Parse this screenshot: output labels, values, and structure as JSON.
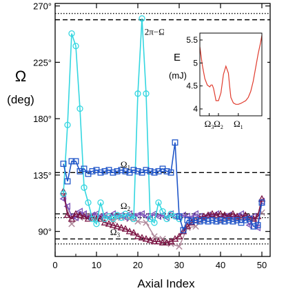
{
  "chart_data": [
    {
      "type": "line",
      "xlabel": "Axial Index",
      "ylabel": "Ω",
      "ylabel_unit": "(deg)",
      "xlim": [
        0,
        52
      ],
      "ylim": [
        70,
        272
      ],
      "x_ticks": [
        0,
        10,
        20,
        30,
        40,
        50
      ],
      "y_ticks": [
        90,
        135,
        180,
        225,
        270
      ],
      "y_tick_labels": [
        "90°",
        "135°",
        "180°",
        "225°",
        "270°"
      ],
      "grid": false,
      "colors": {
        "cyan": "#33d6e0",
        "blue": "#1f55c8",
        "violet": "#7a50b8",
        "maroon": "#7a1242",
        "mauve": "#b08a9c"
      },
      "reference_lines": [
        {
          "label": "2π−Ω₂",
          "y": 259,
          "style": "dashed"
        },
        {
          "y": 264,
          "style": "dotted"
        },
        {
          "label": "Ω₁",
          "y": 137,
          "style": "dashed"
        },
        {
          "label": "Ω₂",
          "y": 104,
          "style": "dashed"
        },
        {
          "y": 101,
          "style": "dotted"
        },
        {
          "label": "Ω₃",
          "y": 84,
          "style": "dashed"
        },
        {
          "y": 80,
          "style": "dotted"
        }
      ],
      "annotations": [
        {
          "text": "2π−Ω",
          "sub": "2",
          "x": 24.5,
          "y": 247
        },
        {
          "text": "Ω",
          "sub": "1",
          "x": 17,
          "y": 141
        },
        {
          "text": "Ω",
          "sub": "2",
          "x": 17,
          "y": 108
        },
        {
          "text": "Ω",
          "sub": "3",
          "x": 14.5,
          "y": 87
        }
      ],
      "series": [
        {
          "marker": "circle",
          "color": "cyan",
          "x": [
            2,
            3,
            4,
            5,
            6,
            7,
            8,
            9,
            10,
            11,
            12,
            13,
            14,
            15,
            16,
            17,
            18,
            19,
            20,
            21,
            22,
            23,
            24,
            25,
            26,
            27,
            28,
            29,
            30
          ],
          "y": [
            120,
            175,
            248,
            238,
            188,
            125,
            113,
            100,
            96,
            113,
            100,
            102,
            100,
            103,
            101,
            104,
            102,
            100,
            200,
            260,
            200,
            100,
            97,
            113,
            106,
            100,
            104,
            102,
            100
          ]
        },
        {
          "marker": "square",
          "color": "blue",
          "x": [
            2,
            3,
            4,
            5,
            6,
            7,
            8,
            9,
            10,
            11,
            12,
            13,
            14,
            15,
            16,
            17,
            18,
            19,
            20,
            21,
            22,
            23,
            24,
            25,
            26,
            27,
            28,
            29,
            30,
            31,
            32,
            33,
            34,
            35,
            36,
            37,
            38,
            39,
            40,
            41,
            42,
            43,
            44,
            45,
            46,
            47,
            48,
            49,
            50
          ],
          "y": [
            144,
            130,
            146,
            146,
            138,
            140,
            136,
            138,
            139,
            137,
            138,
            139,
            137,
            138,
            139,
            138,
            137,
            139,
            138,
            137,
            139,
            138,
            137,
            138,
            140,
            138,
            137,
            161,
            102,
            91,
            99,
            98,
            99,
            98,
            99,
            98,
            99,
            98,
            99,
            98,
            99,
            98,
            99,
            97,
            99,
            100,
            94,
            95,
            113
          ]
        },
        {
          "marker": "triangle-left",
          "color": "violet",
          "x": [
            2,
            3,
            4,
            5,
            6,
            7,
            8,
            9,
            10,
            11,
            12,
            13,
            14,
            15,
            16,
            17,
            18,
            19,
            20,
            21,
            22,
            23,
            24,
            25,
            26,
            27,
            28,
            29,
            30,
            31,
            32,
            33,
            34,
            35,
            36,
            37,
            38,
            39,
            40,
            41,
            42,
            43,
            44,
            45,
            46,
            47,
            48,
            49,
            50
          ],
          "y": [
            116,
            110,
            102,
            101,
            106,
            104,
            101,
            103,
            104,
            102,
            103,
            101,
            104,
            102,
            103,
            101,
            104,
            102,
            103,
            104,
            102,
            101,
            104,
            102,
            103,
            101,
            104,
            102,
            101,
            103,
            102,
            101,
            104,
            102,
            101,
            103,
            102,
            104,
            101,
            102,
            103,
            101,
            102,
            104,
            101,
            95,
            102,
            93,
            114
          ]
        },
        {
          "marker": "triangle-up",
          "color": "maroon",
          "x": [
            2,
            3,
            4,
            5,
            6,
            7,
            8,
            9,
            10,
            11,
            12,
            13,
            14,
            15,
            16,
            17,
            18,
            19,
            20,
            21,
            22,
            23,
            24,
            25,
            26,
            27,
            28,
            29,
            30,
            31,
            32,
            33,
            34,
            35,
            36,
            37,
            38,
            39,
            40,
            41,
            42,
            43,
            44,
            45,
            46,
            47,
            48,
            49,
            50
          ],
          "y": [
            122,
            103,
            100,
            104,
            103,
            102,
            100,
            101,
            100,
            100,
            97,
            96,
            95,
            94,
            93,
            92,
            90,
            89,
            86,
            85,
            84,
            83,
            82,
            82,
            81,
            81,
            82,
            84,
            86,
            90,
            94,
            97,
            99,
            100,
            102,
            103,
            104,
            103,
            104,
            103,
            102,
            104,
            102,
            101,
            103,
            101,
            100,
            102,
            116
          ]
        },
        {
          "marker": "x",
          "color": "mauve",
          "x": [
            2,
            4,
            6,
            8,
            10,
            12,
            14,
            16,
            18,
            20,
            22,
            24,
            26,
            28,
            30,
            32,
            34,
            36,
            38,
            40,
            42,
            44,
            46,
            48,
            50
          ],
          "y": [
            118,
            96,
            101,
            103,
            100,
            102,
            99,
            101,
            100,
            98,
            97,
            86,
            84,
            80,
            78,
            93,
            94,
            100,
            102,
            98,
            100,
            99,
            101,
            99,
            105
          ]
        }
      ]
    },
    {
      "type": "line",
      "ylabel": "E",
      "ylabel_unit": "(mJ)",
      "ylim": [
        3.85,
        5.65
      ],
      "y_ticks": [
        4,
        4.5,
        5,
        5.5
      ],
      "y_tick_labels": [
        "4",
        "4.5",
        "5",
        "5.5"
      ],
      "x_tick_labels": [
        {
          "text": "Ω",
          "sub": "3"
        },
        {
          "text": "Ω",
          "sub": "2"
        },
        {
          "text": "Ω",
          "sub": "1"
        }
      ],
      "colors": {
        "line": "#e03a2c"
      },
      "series": [
        {
          "x": [
            0,
            4,
            8,
            12,
            16,
            18,
            20,
            22,
            24,
            26,
            30,
            34,
            38,
            42,
            46,
            48,
            50,
            54,
            58,
            62,
            66,
            70,
            74,
            78,
            82,
            86,
            90,
            94,
            98,
            100
          ],
          "y": [
            5.35,
            4.95,
            4.66,
            4.52,
            4.48,
            4.52,
            4.52,
            4.45,
            4.32,
            4.18,
            4.18,
            4.35,
            4.75,
            4.93,
            4.78,
            4.5,
            4.25,
            4.13,
            4.1,
            4.1,
            4.12,
            4.15,
            4.18,
            4.25,
            4.38,
            4.6,
            4.9,
            5.2,
            5.45,
            5.6
          ]
        }
      ]
    }
  ]
}
